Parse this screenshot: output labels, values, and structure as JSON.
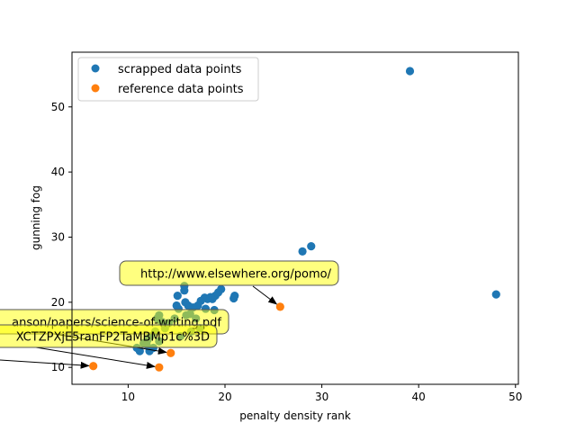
{
  "chart_data": {
    "type": "scatter",
    "xlabel": "penalty density rank",
    "ylabel": "gunning fog",
    "xlim": [
      4.2,
      50.3
    ],
    "ylim": [
      7.4,
      58.4
    ],
    "xticks": [
      10,
      20,
      30,
      40,
      50
    ],
    "yticks": [
      10,
      20,
      30,
      40,
      50
    ],
    "grid": false,
    "legend_position": "top-left",
    "series": [
      {
        "name": "scrapped data points",
        "color": "#1f77b4",
        "points": [
          [
            39.1,
            55.5
          ],
          [
            48.0,
            21.2
          ],
          [
            28.9,
            28.6
          ],
          [
            28.0,
            27.8
          ],
          [
            21.0,
            21.0
          ],
          [
            20.9,
            20.6
          ],
          [
            19.6,
            22.0
          ],
          [
            19.3,
            21.5
          ],
          [
            19.0,
            21.0
          ],
          [
            18.7,
            20.5
          ],
          [
            18.5,
            20.8
          ],
          [
            18.2,
            20.5
          ],
          [
            17.9,
            20.7
          ],
          [
            17.5,
            20.2
          ],
          [
            17.2,
            19.5
          ],
          [
            16.7,
            19.2
          ],
          [
            16.4,
            18.2
          ],
          [
            16.2,
            19.5
          ],
          [
            15.9,
            20.0
          ],
          [
            15.8,
            21.8
          ],
          [
            15.8,
            22.5
          ],
          [
            15.2,
            19.0
          ],
          [
            15.1,
            21.0
          ],
          [
            15.0,
            19.5
          ],
          [
            16.0,
            18.0
          ],
          [
            17.0,
            17.5
          ],
          [
            18.0,
            19.0
          ],
          [
            18.9,
            18.8
          ],
          [
            14.8,
            17.5
          ],
          [
            14.2,
            16.8
          ],
          [
            13.8,
            16.0
          ],
          [
            13.5,
            17.0
          ],
          [
            13.2,
            18.0
          ],
          [
            13.0,
            17.5
          ],
          [
            12.8,
            15.5
          ],
          [
            12.3,
            14.8
          ],
          [
            12.0,
            14.2
          ],
          [
            11.9,
            13.5
          ],
          [
            11.6,
            13.7
          ],
          [
            11.2,
            12.5
          ],
          [
            10.9,
            13.0
          ],
          [
            12.2,
            12.5
          ],
          [
            12.6,
            13.0
          ],
          [
            13.2,
            14.0
          ],
          [
            15.4,
            14.8
          ],
          [
            16.5,
            15.5
          ],
          [
            17.4,
            16.0
          ]
        ]
      },
      {
        "name": "reference data points",
        "color": "#ff7f0e",
        "points": [
          [
            25.7,
            19.3
          ],
          [
            14.4,
            12.2
          ],
          [
            13.2,
            10.0
          ],
          [
            6.4,
            10.2
          ]
        ]
      }
    ],
    "annotations": [
      {
        "text": "http://www.elsewhere.org/pomo/",
        "target": [
          25.7,
          19.3
        ]
      },
      {
        "text": "anson/papers/science-of-writing.pdf",
        "target": [
          14.4,
          12.2
        ]
      },
      {
        "text": "XCTZPXjE5ranFP2TaMBMp1c%3D",
        "target": [
          13.2,
          10.0
        ]
      },
      {
        "text": "",
        "target": [
          6.4,
          10.2
        ]
      }
    ]
  }
}
